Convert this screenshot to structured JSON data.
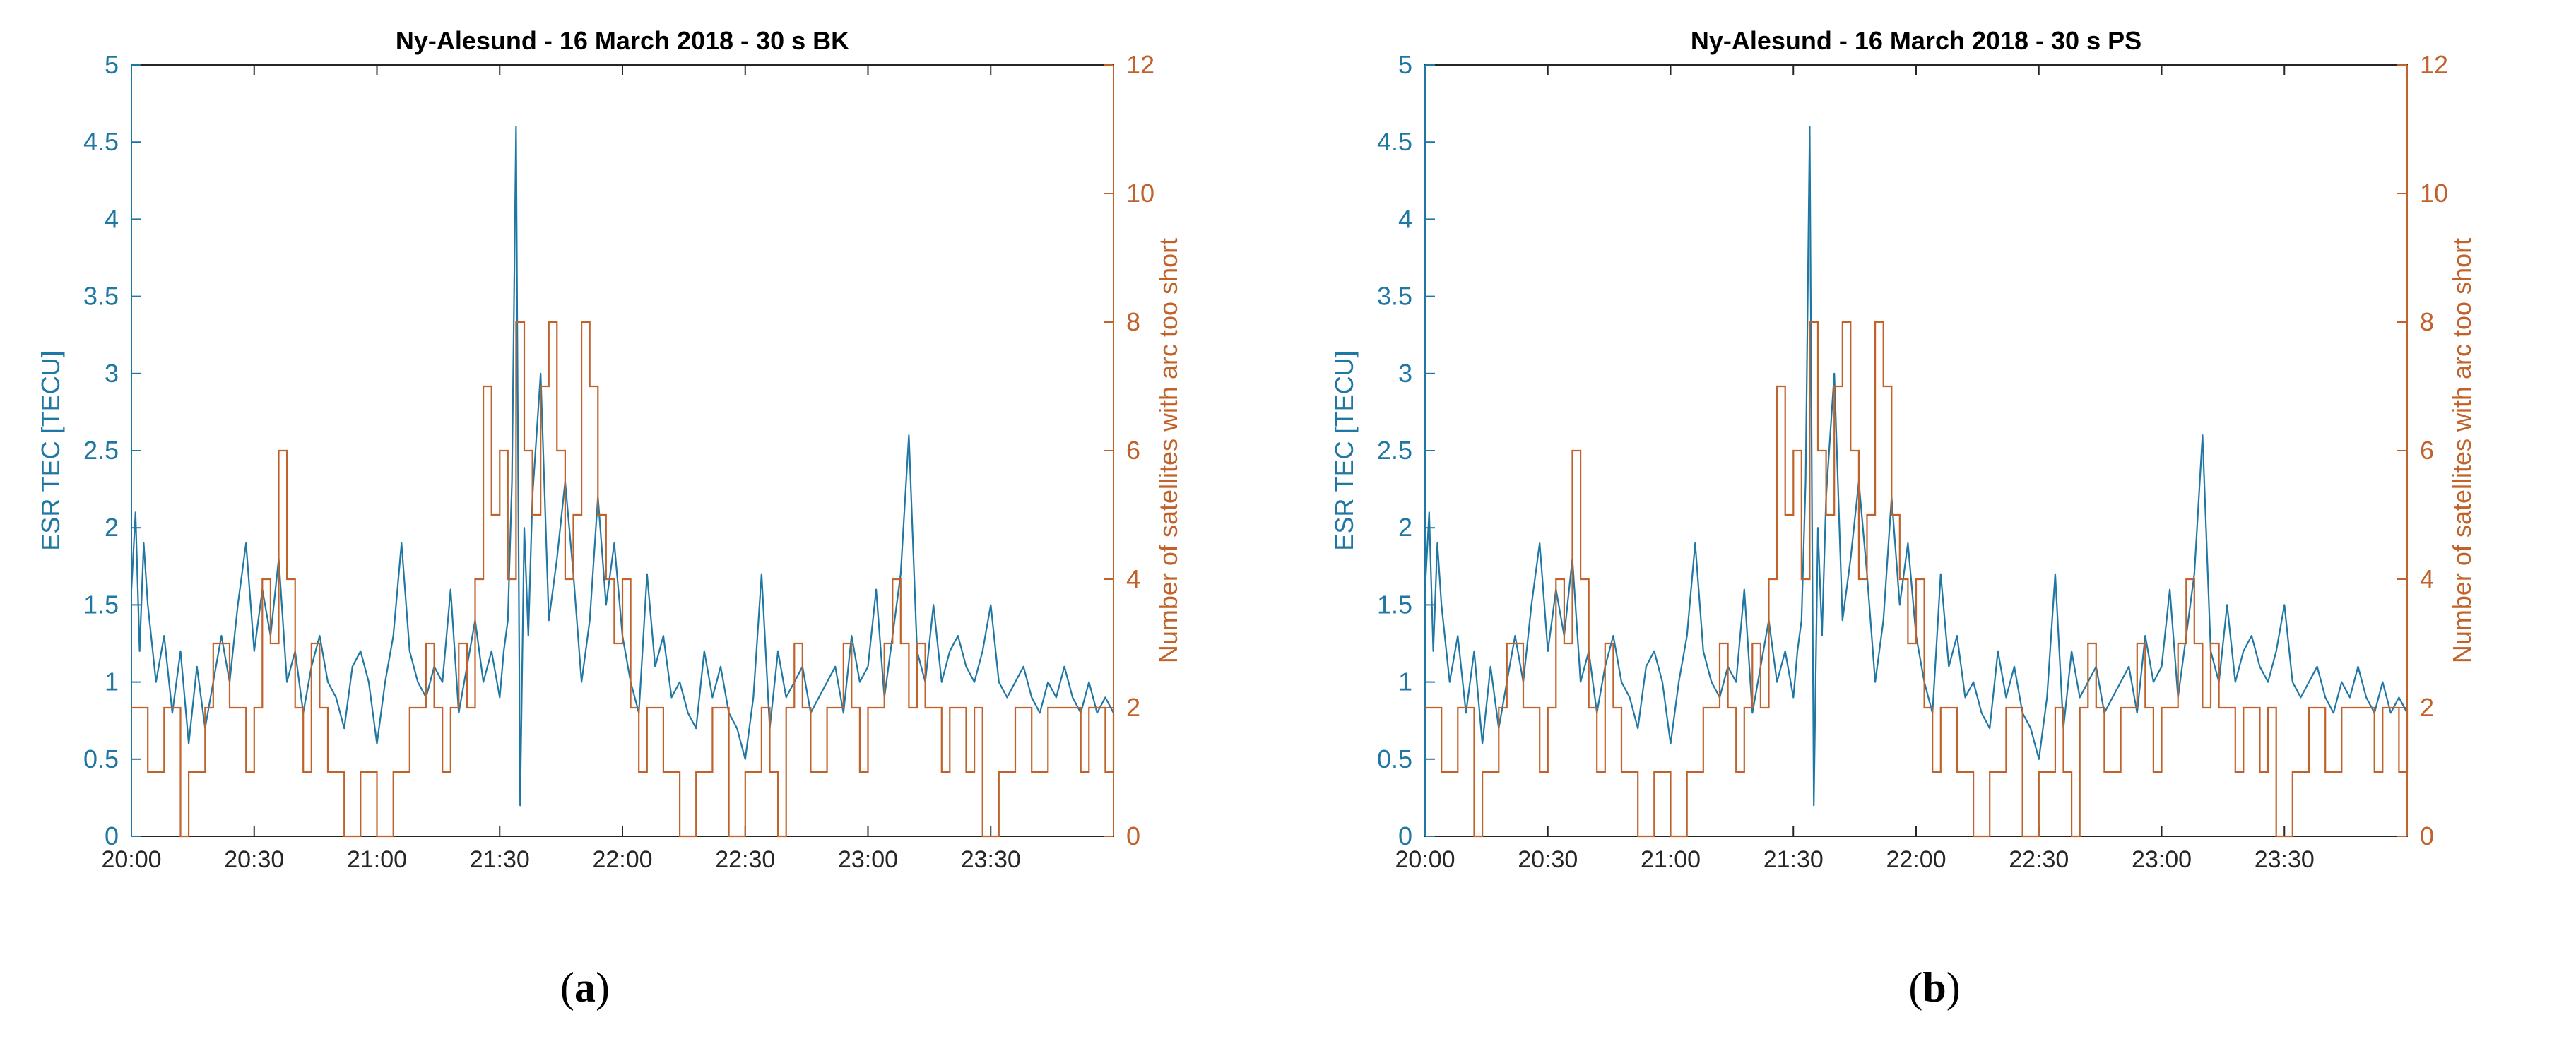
{
  "colors": {
    "tec": "#1f77a4",
    "sat": "#c0622a",
    "axis_x": "#262626",
    "frame": "#262626"
  },
  "captions": {
    "a_open": "(",
    "a_letter": "a",
    "a_close": ")",
    "b_open": "(",
    "b_letter": "b",
    "b_close": ")"
  },
  "chart_data": [
    {
      "type": "line",
      "title": "Ny-Alesund - 16 March 2018 - 30 s BK",
      "xlabel": "",
      "ylabel_left": "ESR TEC [TECU]",
      "ylabel_right": "Number of satellites with arc too short",
      "xlim_minutes": [
        0,
        240
      ],
      "x_tick_labels": [
        "20:00",
        "20:30",
        "21:00",
        "21:30",
        "22:00",
        "22:30",
        "23:00",
        "23:30"
      ],
      "ylim_left": [
        0,
        5
      ],
      "y_left_tick_labels": [
        "0",
        "0.5",
        "1",
        "1.5",
        "2",
        "2.5",
        "3",
        "3.5",
        "4",
        "4.5",
        "5"
      ],
      "ylim_right": [
        0,
        12
      ],
      "y_right_tick_labels": [
        "0",
        "2",
        "4",
        "6",
        "8",
        "10",
        "12"
      ],
      "series": [
        {
          "name": "ESR TEC",
          "axis": "left",
          "x": [
            0,
            1,
            2,
            3,
            4,
            6,
            8,
            10,
            12,
            14,
            16,
            18,
            20,
            22,
            24,
            26,
            28,
            30,
            32,
            34,
            36,
            38,
            40,
            42,
            44,
            46,
            48,
            50,
            52,
            54,
            56,
            58,
            60,
            62,
            64,
            66,
            68,
            70,
            72,
            74,
            76,
            78,
            80,
            82,
            84,
            86,
            88,
            90,
            91,
            92,
            93,
            94,
            95,
            96,
            97,
            98,
            100,
            102,
            104,
            106,
            108,
            110,
            112,
            114,
            116,
            118,
            120,
            122,
            124,
            126,
            128,
            130,
            132,
            134,
            136,
            138,
            140,
            142,
            144,
            146,
            148,
            150,
            152,
            154,
            156,
            158,
            160,
            162,
            164,
            166,
            168,
            170,
            172,
            174,
            176,
            178,
            180,
            182,
            184,
            186,
            188,
            190,
            192,
            194,
            196,
            198,
            200,
            202,
            204,
            206,
            208,
            210,
            212,
            214,
            216,
            218,
            220,
            222,
            224,
            226,
            228,
            230,
            232,
            234,
            236,
            238,
            240
          ],
          "values": [
            1.6,
            2.1,
            1.2,
            1.9,
            1.5,
            1.0,
            1.3,
            0.8,
            1.2,
            0.6,
            1.1,
            0.7,
            1.0,
            1.3,
            1.0,
            1.5,
            1.9,
            1.2,
            1.6,
            1.3,
            1.8,
            1.0,
            1.2,
            0.8,
            1.1,
            1.3,
            1.0,
            0.9,
            0.7,
            1.1,
            1.2,
            1.0,
            0.6,
            1.0,
            1.3,
            1.9,
            1.2,
            1.0,
            0.9,
            1.1,
            1.0,
            1.6,
            0.8,
            1.1,
            1.4,
            1.0,
            1.2,
            0.9,
            1.2,
            1.4,
            2.3,
            4.6,
            0.2,
            2.0,
            1.3,
            2.2,
            3.0,
            1.4,
            1.8,
            2.3,
            1.7,
            1.0,
            1.4,
            2.2,
            1.5,
            1.9,
            1.3,
            1.0,
            0.8,
            1.7,
            1.1,
            1.3,
            0.9,
            1.0,
            0.8,
            0.7,
            1.2,
            0.9,
            1.1,
            0.8,
            0.7,
            0.5,
            0.9,
            1.7,
            0.7,
            1.2,
            0.9,
            1.0,
            1.1,
            0.8,
            0.9,
            1.0,
            1.1,
            0.8,
            1.3,
            1.0,
            1.1,
            1.6,
            0.9,
            1.3,
            1.7,
            2.6,
            1.2,
            1.0,
            1.5,
            1.0,
            1.2,
            1.3,
            1.1,
            1.0,
            1.2,
            1.5,
            1.0,
            0.9,
            1.0,
            1.1,
            0.9,
            0.8,
            1.0,
            0.9,
            1.1,
            0.9,
            0.8,
            1.0,
            0.8,
            0.9,
            0.8
          ]
        },
        {
          "name": "Number of satellites with arc too short",
          "axis": "right",
          "step": true,
          "x": [
            0,
            4,
            8,
            12,
            14,
            18,
            20,
            24,
            28,
            30,
            32,
            34,
            36,
            38,
            40,
            42,
            44,
            46,
            48,
            52,
            56,
            60,
            64,
            68,
            72,
            74,
            76,
            78,
            80,
            82,
            84,
            86,
            88,
            90,
            92,
            94,
            96,
            98,
            100,
            102,
            104,
            106,
            108,
            110,
            112,
            114,
            116,
            118,
            120,
            122,
            124,
            126,
            130,
            134,
            138,
            142,
            146,
            150,
            154,
            156,
            158,
            160,
            162,
            164,
            166,
            170,
            174,
            176,
            178,
            180,
            184,
            186,
            188,
            190,
            192,
            194,
            196,
            198,
            200,
            202,
            204,
            206,
            208,
            212,
            216,
            220,
            224,
            228,
            232,
            234,
            236,
            238,
            240
          ],
          "values": [
            2,
            1,
            2,
            0,
            1,
            2,
            3,
            2,
            1,
            2,
            4,
            3,
            6,
            4,
            2,
            1,
            3,
            2,
            1,
            0,
            1,
            0,
            1,
            2,
            3,
            2,
            1,
            2,
            3,
            2,
            4,
            7,
            5,
            6,
            4,
            8,
            6,
            5,
            7,
            8,
            6,
            4,
            5,
            8,
            7,
            5,
            4,
            3,
            4,
            2,
            1,
            2,
            1,
            0,
            1,
            2,
            0,
            1,
            2,
            1,
            0,
            2,
            3,
            2,
            1,
            2,
            3,
            2,
            1,
            2,
            3,
            4,
            3,
            2,
            3,
            2,
            2,
            1,
            2,
            2,
            1,
            2,
            0,
            1,
            2,
            1,
            2,
            2,
            1,
            2,
            2,
            1,
            2
          ]
        }
      ]
    },
    {
      "type": "line",
      "title": "Ny-Alesund - 16 March 2018 - 30 s PS",
      "xlabel": "",
      "ylabel_left": "ESR TEC [TECU]",
      "ylabel_right": "Number of satellites with arc too short",
      "xlim_minutes": [
        0,
        240
      ],
      "x_tick_labels": [
        "20:00",
        "20:30",
        "21:00",
        "21:30",
        "22:00",
        "22:30",
        "23:00",
        "23:30"
      ],
      "ylim_left": [
        0,
        5
      ],
      "y_left_tick_labels": [
        "0",
        "0.5",
        "1",
        "1.5",
        "2",
        "2.5",
        "3",
        "3.5",
        "4",
        "4.5",
        "5"
      ],
      "ylim_right": [
        0,
        12
      ],
      "y_right_tick_labels": [
        "0",
        "2",
        "4",
        "6",
        "8",
        "10",
        "12"
      ],
      "series": [
        {
          "name": "ESR TEC",
          "axis": "left",
          "x": [
            0,
            1,
            2,
            3,
            4,
            6,
            8,
            10,
            12,
            14,
            16,
            18,
            20,
            22,
            24,
            26,
            28,
            30,
            32,
            34,
            36,
            38,
            40,
            42,
            44,
            46,
            48,
            50,
            52,
            54,
            56,
            58,
            60,
            62,
            64,
            66,
            68,
            70,
            72,
            74,
            76,
            78,
            80,
            82,
            84,
            86,
            88,
            90,
            91,
            92,
            93,
            94,
            95,
            96,
            97,
            98,
            100,
            102,
            104,
            106,
            108,
            110,
            112,
            114,
            116,
            118,
            120,
            122,
            124,
            126,
            128,
            130,
            132,
            134,
            136,
            138,
            140,
            142,
            144,
            146,
            148,
            150,
            152,
            154,
            156,
            158,
            160,
            162,
            164,
            166,
            168,
            170,
            172,
            174,
            176,
            178,
            180,
            182,
            184,
            186,
            188,
            190,
            192,
            194,
            196,
            198,
            200,
            202,
            204,
            206,
            208,
            210,
            212,
            214,
            216,
            218,
            220,
            222,
            224,
            226,
            228,
            230,
            232,
            234,
            236,
            238,
            240
          ],
          "values": [
            1.6,
            2.1,
            1.2,
            1.9,
            1.5,
            1.0,
            1.3,
            0.8,
            1.2,
            0.6,
            1.1,
            0.7,
            1.0,
            1.3,
            1.0,
            1.5,
            1.9,
            1.2,
            1.6,
            1.3,
            1.8,
            1.0,
            1.2,
            0.8,
            1.1,
            1.3,
            1.0,
            0.9,
            0.7,
            1.1,
            1.2,
            1.0,
            0.6,
            1.0,
            1.3,
            1.9,
            1.2,
            1.0,
            0.9,
            1.1,
            1.0,
            1.6,
            0.8,
            1.1,
            1.4,
            1.0,
            1.2,
            0.9,
            1.2,
            1.4,
            2.3,
            4.6,
            0.2,
            2.0,
            1.3,
            2.2,
            3.0,
            1.4,
            1.8,
            2.3,
            1.7,
            1.0,
            1.4,
            2.2,
            1.5,
            1.9,
            1.3,
            1.0,
            0.8,
            1.7,
            1.1,
            1.3,
            0.9,
            1.0,
            0.8,
            0.7,
            1.2,
            0.9,
            1.1,
            0.8,
            0.7,
            0.5,
            0.9,
            1.7,
            0.7,
            1.2,
            0.9,
            1.0,
            1.1,
            0.8,
            0.9,
            1.0,
            1.1,
            0.8,
            1.3,
            1.0,
            1.1,
            1.6,
            0.9,
            1.3,
            1.7,
            2.6,
            1.2,
            1.0,
            1.5,
            1.0,
            1.2,
            1.3,
            1.1,
            1.0,
            1.2,
            1.5,
            1.0,
            0.9,
            1.0,
            1.1,
            0.9,
            0.8,
            1.0,
            0.9,
            1.1,
            0.9,
            0.8,
            1.0,
            0.8,
            0.9,
            0.8
          ]
        },
        {
          "name": "Number of satellites with arc too short",
          "axis": "right",
          "step": true,
          "x": [
            0,
            4,
            8,
            12,
            14,
            18,
            20,
            24,
            28,
            30,
            32,
            34,
            36,
            38,
            40,
            42,
            44,
            46,
            48,
            52,
            56,
            60,
            64,
            68,
            72,
            74,
            76,
            78,
            80,
            82,
            84,
            86,
            88,
            90,
            92,
            94,
            96,
            98,
            100,
            102,
            104,
            106,
            108,
            110,
            112,
            114,
            116,
            118,
            120,
            122,
            124,
            126,
            130,
            134,
            138,
            142,
            146,
            150,
            154,
            156,
            158,
            160,
            162,
            164,
            166,
            170,
            174,
            176,
            178,
            180,
            184,
            186,
            188,
            190,
            192,
            194,
            196,
            198,
            200,
            202,
            204,
            206,
            208,
            212,
            216,
            220,
            224,
            228,
            232,
            234,
            236,
            238,
            240
          ],
          "values": [
            2,
            1,
            2,
            0,
            1,
            2,
            3,
            2,
            1,
            2,
            4,
            3,
            6,
            4,
            2,
            1,
            3,
            2,
            1,
            0,
            1,
            0,
            1,
            2,
            3,
            2,
            1,
            2,
            3,
            2,
            4,
            7,
            5,
            6,
            4,
            8,
            6,
            5,
            7,
            8,
            6,
            4,
            5,
            8,
            7,
            5,
            4,
            3,
            4,
            2,
            1,
            2,
            1,
            0,
            1,
            2,
            0,
            1,
            2,
            1,
            0,
            2,
            3,
            2,
            1,
            2,
            3,
            2,
            1,
            2,
            3,
            4,
            3,
            2,
            3,
            2,
            2,
            1,
            2,
            2,
            1,
            2,
            0,
            1,
            2,
            1,
            2,
            2,
            1,
            2,
            2,
            1,
            2
          ]
        }
      ]
    }
  ]
}
